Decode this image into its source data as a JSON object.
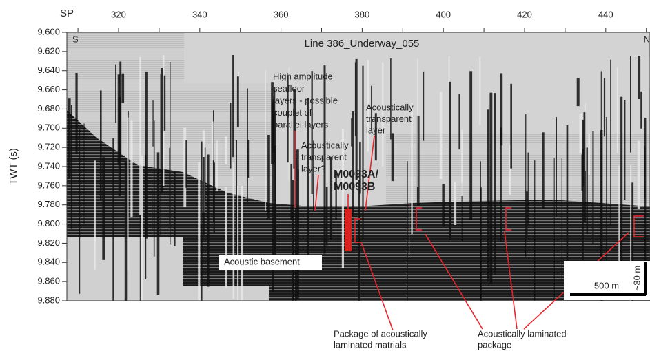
{
  "header": {
    "title": "Line 386_Underway_055",
    "left_end": "S",
    "right_end": "N"
  },
  "axes": {
    "x_label": "SP",
    "x_ticks": [
      "320",
      "340",
      "360",
      "380",
      "400",
      "420",
      "440"
    ],
    "y_label": "TWT (s)",
    "y_ticks": [
      "9.600",
      "9.620",
      "9.640",
      "9.660",
      "9.680",
      "9.700",
      "9.720",
      "9.740",
      "9.760",
      "9.780",
      "9.800",
      "9.820",
      "9.840",
      "9.860",
      "9.880"
    ]
  },
  "annotations": [
    {
      "lines": [
        "High amplitude",
        "seafloor",
        "layers - possible",
        "couplet of",
        "parallel layers"
      ]
    },
    {
      "lines": [
        "Acoustically",
        "transparent",
        "layer?"
      ]
    },
    {
      "lines": [
        "Acoustically",
        "transparent",
        "layer"
      ]
    },
    {
      "lines": [
        "M0093A/",
        "M0093B"
      ]
    },
    {
      "lines": [
        "Acoustic basement"
      ]
    },
    {
      "lines": [
        "Package of acoustically",
        "laminated matrials"
      ]
    },
    {
      "lines": [
        "Acoustically laminated",
        "package"
      ]
    }
  ],
  "scale_bar": {
    "horizontal": "500 m",
    "vertical": "~30 m"
  }
}
